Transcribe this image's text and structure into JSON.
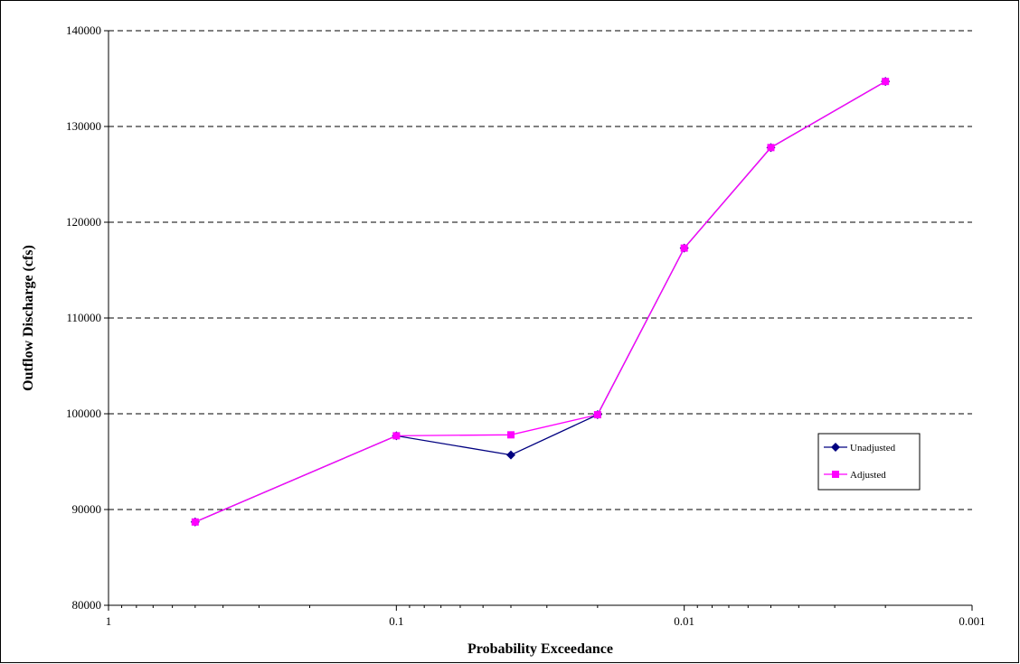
{
  "chart_data": {
    "type": "line",
    "xlabel": "Probability Exceedance",
    "ylabel": "Outflow Discharge (cfs)",
    "x_scale": "log",
    "x_reversed": true,
    "xlim": [
      1,
      0.001
    ],
    "ylim": [
      80000,
      140000
    ],
    "x_ticks": [
      1,
      0.1,
      0.01,
      0.001
    ],
    "x_tick_labels": [
      "1",
      "0.1",
      "0.01",
      "0.001"
    ],
    "y_ticks": [
      80000,
      90000,
      100000,
      110000,
      120000,
      130000,
      140000
    ],
    "y_tick_labels": [
      "80000",
      "90000",
      "100000",
      "110000",
      "120000",
      "130000",
      "140000"
    ],
    "grid": "horizontal dashed",
    "legend_position": "right",
    "series": [
      {
        "name": "Unadjusted",
        "color": "#000080",
        "marker": "diamond",
        "x": [
          0.5,
          0.1,
          0.04,
          0.02,
          0.01,
          0.005,
          0.002
        ],
        "y": [
          88700,
          97700,
          95700,
          99900,
          117300,
          127800,
          134700
        ]
      },
      {
        "name": "Adjusted",
        "color": "#ff00ff",
        "marker": "square",
        "x": [
          0.5,
          0.1,
          0.04,
          0.02,
          0.01,
          0.005,
          0.002
        ],
        "y": [
          88700,
          97700,
          97800,
          99900,
          117300,
          127800,
          134700
        ]
      }
    ]
  }
}
